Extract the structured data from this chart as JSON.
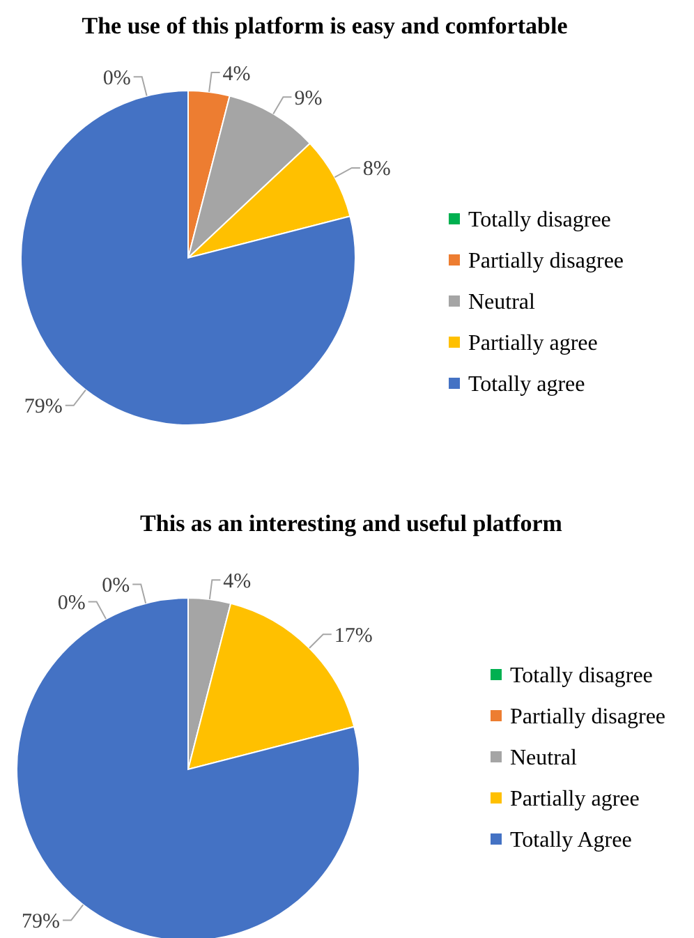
{
  "chart_data": [
    {
      "type": "pie",
      "title": "The use of this platform is easy and comfortable",
      "categories": [
        "Totally disagree",
        "Partially disagree",
        "Neutral",
        "Partially agree",
        "Totally agree"
      ],
      "values": [
        0,
        4,
        9,
        8,
        79
      ],
      "colors": [
        "#00b050",
        "#ed7d31",
        "#a5a5a5",
        "#ffc000",
        "#4472c4"
      ],
      "value_labels": [
        "0%",
        "4%",
        "9%",
        "8%",
        "79%"
      ],
      "legend": "right"
    },
    {
      "type": "pie",
      "title": "This as an interesting and useful platform",
      "categories": [
        "Totally disagree",
        "Partially disagree",
        "Neutral",
        "Partially agree",
        "Totally Agree"
      ],
      "values": [
        0,
        0,
        4,
        17,
        79
      ],
      "colors": [
        "#00b050",
        "#ed7d31",
        "#a5a5a5",
        "#ffc000",
        "#4472c4"
      ],
      "value_labels": [
        "0%",
        "0%",
        "4%",
        "17%",
        "79%"
      ],
      "legend": "right"
    }
  ]
}
